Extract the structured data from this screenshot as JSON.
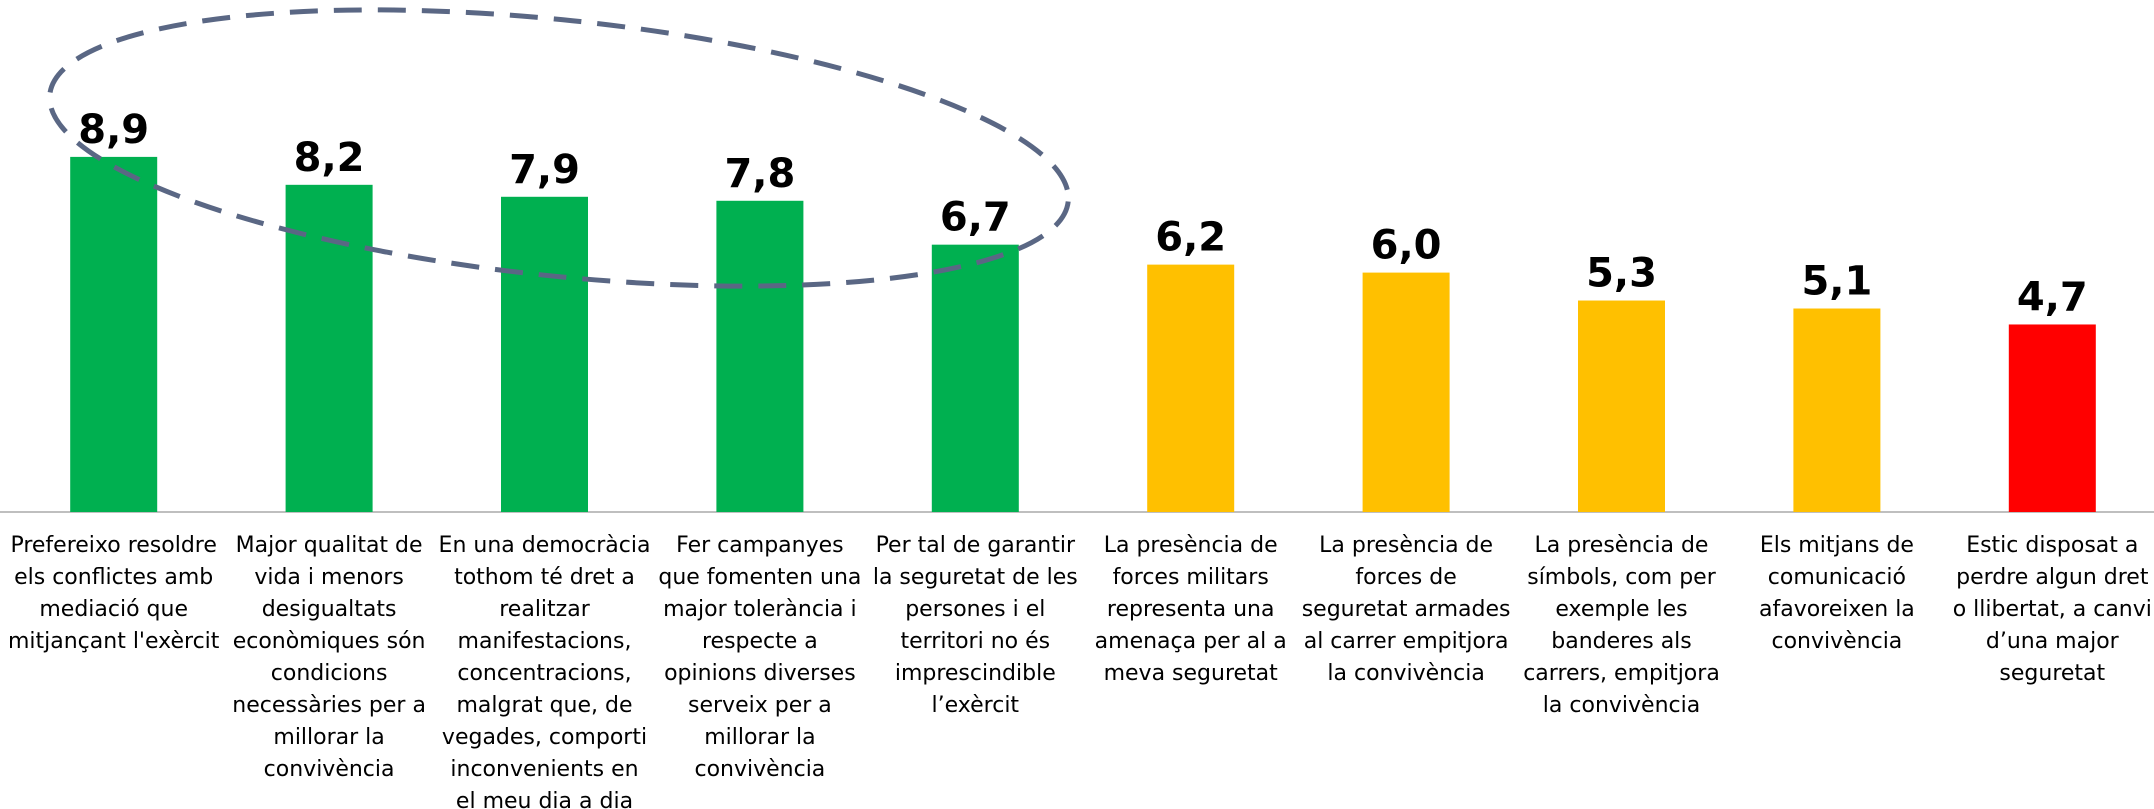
{
  "chart_data": {
    "type": "bar",
    "categories": [
      "Prefereixo resoldre els conflictes amb mediació que mitjançant l'exèrcit",
      "Major qualitat de vida i menors desigualtats econòmiques són condicions necessàries per a millorar la convivència",
      "En una democràcia tothom té dret a realitzar manifestacions, concentracions, malgrat que, de vegades, comporti inconvenients en el meu dia a dia",
      "Fer campanyes que fomenten una major tolerància i respecte a opinions diverses serveix per a millorar la convivència",
      "Per tal de garantir la seguretat de les persones i el territori no és imprescindible l’exèrcit",
      "La presència de forces militars representa una amenaça per al a meva seguretat",
      "La presència de forces de seguretat armades al carrer empitjora la convivència",
      "La presència de símbols, com per exemple les banderes als carrers, empitjora la convivència",
      "Els mitjans de comunicació afavoreixen la convivència",
      "Estic disposat a perdre algun dret o llibertat, a canvi d’una major seguretat"
    ],
    "values": [
      8.9,
      8.2,
      7.9,
      7.8,
      6.7,
      6.2,
      6.0,
      5.3,
      5.1,
      4.7
    ],
    "value_labels": [
      "8,9",
      "8,2",
      "7,9",
      "7,8",
      "6,7",
      "6,2",
      "6,0",
      "5,3",
      "5,1",
      "4,7"
    ],
    "colors": [
      "#00b050",
      "#00b050",
      "#00b050",
      "#00b050",
      "#00b050",
      "#ffc000",
      "#ffc000",
      "#ffc000",
      "#ffc000",
      "#ff0000"
    ],
    "ylim": [
      0,
      10
    ]
  }
}
